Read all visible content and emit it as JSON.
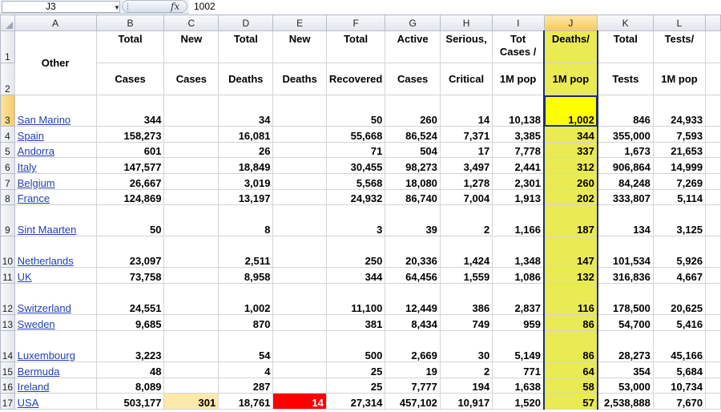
{
  "formula_bar": {
    "name_box": "J3",
    "fx_icon": "fx",
    "formula_value": "1002"
  },
  "columns": [
    "A",
    "B",
    "C",
    "D",
    "E",
    "F",
    "G",
    "H",
    "I",
    "J",
    "K",
    "L"
  ],
  "selected_column": "J",
  "header": {
    "col_a": "Other",
    "row1": [
      "Total",
      "New",
      "Total",
      "New",
      "Total",
      "Active",
      "Serious,",
      "Tot Cases /",
      "Deaths/",
      "Total",
      "Tests/"
    ],
    "row2": [
      "Cases",
      "Cases",
      "Deaths",
      "Deaths",
      "Recovered",
      "Cases",
      "Critical",
      "1M pop",
      "1M pop",
      "Tests",
      "1M pop"
    ]
  },
  "header_row_numbers": [
    "1",
    "2"
  ],
  "rows": [
    {
      "row": "3",
      "country": "San Marino",
      "total_cases": "344",
      "new_cases": "",
      "total_deaths": "34",
      "new_deaths": "",
      "total_recovered": "50",
      "active": "260",
      "serious": "14",
      "cases_per_1m": "10,138",
      "deaths_per_1m": "1,002",
      "total_tests": "846",
      "tests_per_1m": "24,933"
    },
    {
      "row": "4",
      "country": "Spain",
      "total_cases": "158,273",
      "new_cases": "",
      "total_deaths": "16,081",
      "new_deaths": "",
      "total_recovered": "55,668",
      "active": "86,524",
      "serious": "7,371",
      "cases_per_1m": "3,385",
      "deaths_per_1m": "344",
      "total_tests": "355,000",
      "tests_per_1m": "7,593"
    },
    {
      "row": "5",
      "country": "Andorra",
      "total_cases": "601",
      "new_cases": "",
      "total_deaths": "26",
      "new_deaths": "",
      "total_recovered": "71",
      "active": "504",
      "serious": "17",
      "cases_per_1m": "7,778",
      "deaths_per_1m": "337",
      "total_tests": "1,673",
      "tests_per_1m": "21,653"
    },
    {
      "row": "6",
      "country": "Italy",
      "total_cases": "147,577",
      "new_cases": "",
      "total_deaths": "18,849",
      "new_deaths": "",
      "total_recovered": "30,455",
      "active": "98,273",
      "serious": "3,497",
      "cases_per_1m": "2,441",
      "deaths_per_1m": "312",
      "total_tests": "906,864",
      "tests_per_1m": "14,999"
    },
    {
      "row": "7",
      "country": "Belgium",
      "total_cases": "26,667",
      "new_cases": "",
      "total_deaths": "3,019",
      "new_deaths": "",
      "total_recovered": "5,568",
      "active": "18,080",
      "serious": "1,278",
      "cases_per_1m": "2,301",
      "deaths_per_1m": "260",
      "total_tests": "84,248",
      "tests_per_1m": "7,269"
    },
    {
      "row": "8",
      "country": "France",
      "total_cases": "124,869",
      "new_cases": "",
      "total_deaths": "13,197",
      "new_deaths": "",
      "total_recovered": "24,932",
      "active": "86,740",
      "serious": "7,004",
      "cases_per_1m": "1,913",
      "deaths_per_1m": "202",
      "total_tests": "333,807",
      "tests_per_1m": "5,114"
    },
    {
      "row": "9",
      "country": "Sint Maarten",
      "total_cases": "50",
      "new_cases": "",
      "total_deaths": "8",
      "new_deaths": "",
      "total_recovered": "3",
      "active": "39",
      "serious": "2",
      "cases_per_1m": "1,166",
      "deaths_per_1m": "187",
      "total_tests": "134",
      "tests_per_1m": "3,125"
    },
    {
      "row": "10",
      "country": "Netherlands",
      "total_cases": "23,097",
      "new_cases": "",
      "total_deaths": "2,511",
      "new_deaths": "",
      "total_recovered": "250",
      "active": "20,336",
      "serious": "1,424",
      "cases_per_1m": "1,348",
      "deaths_per_1m": "147",
      "total_tests": "101,534",
      "tests_per_1m": "5,926"
    },
    {
      "row": "11",
      "country": "UK",
      "total_cases": "73,758",
      "new_cases": "",
      "total_deaths": "8,958",
      "new_deaths": "",
      "total_recovered": "344",
      "active": "64,456",
      "serious": "1,559",
      "cases_per_1m": "1,086",
      "deaths_per_1m": "132",
      "total_tests": "316,836",
      "tests_per_1m": "4,667"
    },
    {
      "row": "12",
      "country": "Switzerland",
      "total_cases": "24,551",
      "new_cases": "",
      "total_deaths": "1,002",
      "new_deaths": "",
      "total_recovered": "11,100",
      "active": "12,449",
      "serious": "386",
      "cases_per_1m": "2,837",
      "deaths_per_1m": "116",
      "total_tests": "178,500",
      "tests_per_1m": "20,625"
    },
    {
      "row": "13",
      "country": "Sweden",
      "total_cases": "9,685",
      "new_cases": "",
      "total_deaths": "870",
      "new_deaths": "",
      "total_recovered": "381",
      "active": "8,434",
      "serious": "749",
      "cases_per_1m": "959",
      "deaths_per_1m": "86",
      "total_tests": "54,700",
      "tests_per_1m": "5,416"
    },
    {
      "row": "14",
      "country": "Luxembourg",
      "total_cases": "3,223",
      "new_cases": "",
      "total_deaths": "54",
      "new_deaths": "",
      "total_recovered": "500",
      "active": "2,669",
      "serious": "30",
      "cases_per_1m": "5,149",
      "deaths_per_1m": "86",
      "total_tests": "28,273",
      "tests_per_1m": "45,166"
    },
    {
      "row": "15",
      "country": "Bermuda",
      "total_cases": "48",
      "new_cases": "",
      "total_deaths": "4",
      "new_deaths": "",
      "total_recovered": "25",
      "active": "19",
      "serious": "2",
      "cases_per_1m": "771",
      "deaths_per_1m": "64",
      "total_tests": "354",
      "tests_per_1m": "5,684"
    },
    {
      "row": "16",
      "country": "Ireland",
      "total_cases": "8,089",
      "new_cases": "",
      "total_deaths": "287",
      "new_deaths": "",
      "total_recovered": "25",
      "active": "7,777",
      "serious": "194",
      "cases_per_1m": "1,638",
      "deaths_per_1m": "58",
      "total_tests": "53,000",
      "tests_per_1m": "10,734"
    },
    {
      "row": "17",
      "country": "USA",
      "total_cases": "503,177",
      "new_cases": "301",
      "total_deaths": "18,761",
      "new_deaths": "14",
      "total_recovered": "27,314",
      "active": "457,102",
      "serious": "10,917",
      "cases_per_1m": "1,520",
      "deaths_per_1m": "57",
      "total_tests": "2,538,888",
      "tests_per_1m": "7,670"
    }
  ],
  "colors": {
    "selected_cell": "#ffff00",
    "selected_column_fill": "#eaea55",
    "new_cases_highlight": "#fde9a9",
    "new_deaths_highlight": "#ff0000",
    "hyperlink": "#1f3fb3"
  }
}
